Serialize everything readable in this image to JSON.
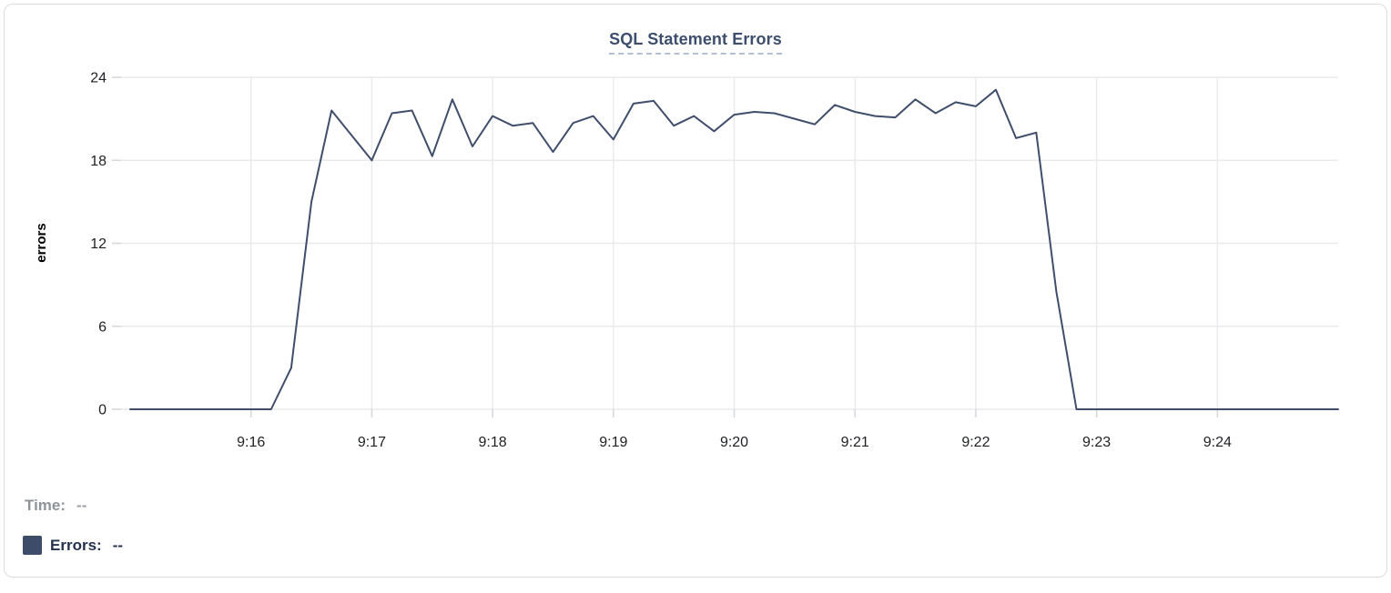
{
  "chart_data": {
    "type": "line",
    "title": "SQL Statement Errors",
    "xlabel": "",
    "ylabel": "errors",
    "grid": true,
    "legend_position": "none",
    "ylim": [
      0,
      24
    ],
    "y_ticks": [
      0,
      6,
      12,
      18,
      24
    ],
    "x_ticks": [
      "9:16",
      "9:17",
      "9:18",
      "9:19",
      "9:20",
      "9:21",
      "9:22",
      "9:23",
      "9:24"
    ],
    "x_range": [
      "9:15:00",
      "9:25:00"
    ],
    "interval_seconds": 10,
    "times": [
      "9:15:00",
      "9:15:10",
      "9:15:20",
      "9:15:30",
      "9:15:40",
      "9:15:50",
      "9:16:00",
      "9:16:10",
      "9:16:20",
      "9:16:30",
      "9:16:40",
      "9:16:50",
      "9:17:00",
      "9:17:10",
      "9:17:20",
      "9:17:30",
      "9:17:40",
      "9:17:50",
      "9:18:00",
      "9:18:10",
      "9:18:20",
      "9:18:30",
      "9:18:40",
      "9:18:50",
      "9:19:00",
      "9:19:10",
      "9:19:20",
      "9:19:30",
      "9:19:40",
      "9:19:50",
      "9:20:00",
      "9:20:10",
      "9:20:20",
      "9:20:30",
      "9:20:40",
      "9:20:50",
      "9:21:00",
      "9:21:10",
      "9:21:20",
      "9:21:30",
      "9:21:40",
      "9:21:50",
      "9:22:00",
      "9:22:10",
      "9:22:20",
      "9:22:30",
      "9:22:40",
      "9:22:50",
      "9:23:00",
      "9:23:10",
      "9:23:20",
      "9:23:30",
      "9:23:40",
      "9:23:50",
      "9:24:00",
      "9:24:10",
      "9:24:20",
      "9:24:30",
      "9:24:40",
      "9:24:50",
      "9:25:00"
    ],
    "series": [
      {
        "name": "Errors",
        "color": "#3f4e6b",
        "values": [
          0,
          0,
          0,
          0,
          0,
          0,
          0,
          0,
          3,
          15,
          21.6,
          19.8,
          18,
          21.4,
          21.6,
          18.3,
          22.4,
          19,
          21.2,
          20.5,
          20.7,
          18.6,
          20.7,
          21.2,
          19.5,
          22.1,
          22.3,
          20.5,
          21.2,
          20.1,
          21.3,
          21.5,
          21.4,
          21,
          20.6,
          22,
          21.5,
          21.2,
          21.1,
          22.4,
          21.4,
          22.2,
          21.9,
          23.1,
          19.6,
          20,
          8.5,
          0,
          0,
          0,
          0,
          0,
          0,
          0,
          0,
          0,
          0,
          0,
          0,
          0,
          0
        ]
      }
    ],
    "colors": {
      "gridline": "#e9eaec",
      "tick_mark": "#d6d8db",
      "tick_text": "#1e2023",
      "axis_title_text": "#000000",
      "title_text": "#3d4e6d",
      "title_underline": "#b3bfd6"
    }
  },
  "footer": {
    "time_label": "Time:",
    "time_value": "--",
    "errors_label": "Errors:",
    "errors_value": "--",
    "swatch_color": "#3d4c68"
  }
}
